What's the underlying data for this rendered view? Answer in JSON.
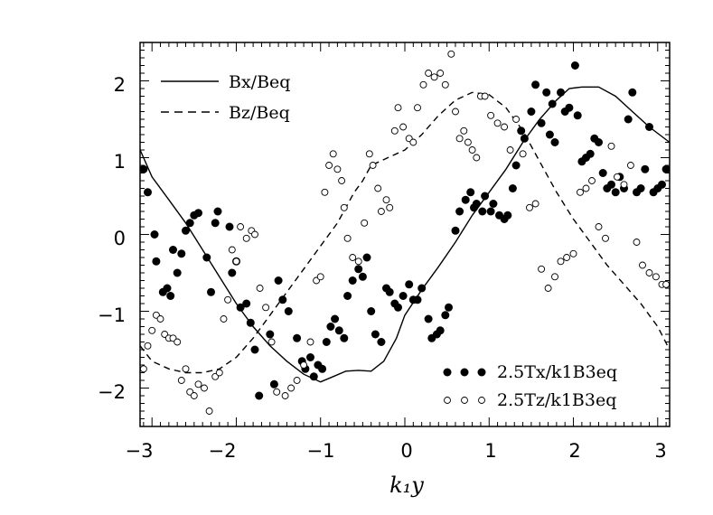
{
  "chart_data": {
    "type": "scatter",
    "title": "",
    "xlabel": "k₁y",
    "ylabel": "",
    "xlim": [
      -3.14159,
      3.14159
    ],
    "ylim": [
      -2.5,
      2.5
    ],
    "x_ticks": [
      -3,
      -2,
      -1,
      0,
      1,
      2,
      3
    ],
    "x_tick_labels": [
      "−3",
      "−2",
      "−1",
      "0",
      "1",
      "2",
      "3"
    ],
    "y_ticks": [
      -2,
      -1,
      0,
      1,
      2
    ],
    "y_tick_labels": [
      "−2",
      "−1",
      "0",
      "1",
      "2"
    ],
    "grid": false,
    "legend_top": {
      "position": "top-left",
      "entries": [
        {
          "style": "solid",
          "label": "Bx/Beq"
        },
        {
          "style": "dashed",
          "label": "Bz/Beq"
        }
      ]
    },
    "legend_bottom": {
      "position": "bottom-right",
      "entries": [
        {
          "style": "filled",
          "label": "2.5Tx/k1B3eq"
        },
        {
          "style": "open",
          "label": "2.5Tz/k1B3eq"
        }
      ]
    },
    "series": [
      {
        "key": "bx_line",
        "kind": "line",
        "dash": false,
        "x": [
          -3.14,
          -3.0,
          -2.8,
          -2.6,
          -2.4,
          -2.2,
          -2.0,
          -1.8,
          -1.6,
          -1.4,
          -1.2,
          -1.0,
          -0.85,
          -0.7,
          -0.55,
          -0.4,
          -0.25,
          -0.1,
          0.0,
          0.2,
          0.4,
          0.6,
          0.8,
          1.0,
          1.2,
          1.4,
          1.6,
          1.8,
          1.95,
          2.1,
          2.3,
          2.5,
          2.7,
          2.9,
          3.14
        ],
        "y": [
          1.1,
          0.75,
          0.45,
          0.15,
          -0.2,
          -0.55,
          -0.9,
          -1.2,
          -1.45,
          -1.65,
          -1.82,
          -1.92,
          -1.85,
          -1.78,
          -1.77,
          -1.78,
          -1.65,
          -1.35,
          -1.05,
          -0.72,
          -0.42,
          -0.1,
          0.25,
          0.55,
          0.85,
          1.2,
          1.5,
          1.75,
          1.9,
          1.92,
          1.92,
          1.8,
          1.6,
          1.4,
          1.2
        ]
      },
      {
        "key": "bz_line",
        "kind": "line",
        "dash": true,
        "x": [
          -3.14,
          -3.0,
          -2.8,
          -2.6,
          -2.4,
          -2.2,
          -2.0,
          -1.8,
          -1.6,
          -1.4,
          -1.2,
          -1.0,
          -0.8,
          -0.6,
          -0.5,
          -0.4,
          -0.3,
          -0.2,
          0.0,
          0.2,
          0.4,
          0.6,
          0.8,
          1.0,
          1.2,
          1.4,
          1.6,
          1.8,
          2.0,
          2.2,
          2.4,
          2.6,
          2.8,
          3.0,
          3.14
        ],
        "y": [
          -1.45,
          -1.65,
          -1.75,
          -1.8,
          -1.8,
          -1.75,
          -1.6,
          -1.35,
          -1.05,
          -0.75,
          -0.45,
          -0.15,
          0.15,
          0.55,
          0.7,
          0.9,
          0.95,
          1.0,
          1.1,
          1.3,
          1.55,
          1.75,
          1.85,
          1.82,
          1.65,
          1.35,
          0.95,
          0.55,
          0.2,
          -0.1,
          -0.4,
          -0.65,
          -0.9,
          -1.2,
          -1.5
        ]
      },
      {
        "key": "tx_points",
        "kind": "points",
        "filled": true,
        "x": [
          -3.1,
          -3.05,
          -2.97,
          -2.95,
          -2.87,
          -2.82,
          -2.78,
          -2.75,
          -2.7,
          -2.65,
          -2.6,
          -2.55,
          -2.5,
          -2.45,
          -2.35,
          -2.3,
          -2.25,
          -2.22,
          -2.08,
          -2.05,
          -2.0,
          -1.95,
          -1.88,
          -1.83,
          -1.78,
          -1.73,
          -1.6,
          -1.55,
          -1.5,
          -1.45,
          -1.38,
          -1.28,
          -1.22,
          -1.18,
          -1.12,
          -1.08,
          -1.03,
          -0.98,
          -0.93,
          -0.88,
          -0.83,
          -0.78,
          -0.72,
          -0.68,
          -0.62,
          -0.55,
          -0.5,
          -0.45,
          -0.4,
          -0.35,
          -0.28,
          -0.22,
          -0.18,
          -0.12,
          -0.08,
          -0.02,
          0.05,
          0.1,
          0.15,
          0.2,
          0.28,
          0.32,
          0.38,
          0.42,
          0.48,
          0.52,
          0.6,
          0.65,
          0.72,
          0.78,
          0.82,
          0.85,
          0.92,
          0.95,
          1.02,
          1.05,
          1.12,
          1.18,
          1.22,
          1.28,
          1.32,
          1.38,
          1.42,
          1.5,
          1.55,
          1.62,
          1.68,
          1.72,
          1.75,
          1.78,
          1.85,
          1.9,
          1.95,
          2.02,
          2.05,
          2.1,
          2.15,
          2.2,
          2.25,
          2.3,
          2.35,
          2.4,
          2.45,
          2.5,
          2.55,
          2.6,
          2.65,
          2.7,
          2.75,
          2.8,
          2.85,
          2.9,
          2.95,
          3.0,
          3.05,
          3.1
        ],
        "y": [
          0.85,
          0.55,
          0.0,
          -0.35,
          -0.75,
          -0.7,
          -0.8,
          -0.2,
          -0.5,
          -0.25,
          0.05,
          0.15,
          0.25,
          0.28,
          -0.3,
          -0.75,
          0.15,
          0.3,
          0.1,
          -0.5,
          -0.35,
          -0.95,
          -0.9,
          -1.15,
          -1.5,
          -2.1,
          -1.3,
          -1.95,
          -0.6,
          -0.85,
          -1.0,
          -1.35,
          -1.65,
          -1.75,
          -1.6,
          -1.85,
          -1.7,
          -1.75,
          -1.4,
          -1.2,
          -1.1,
          -1.25,
          -1.35,
          -0.8,
          -0.6,
          -0.45,
          -0.55,
          -0.3,
          -1.0,
          -1.3,
          -1.4,
          -0.7,
          -0.75,
          -0.9,
          -0.95,
          -0.8,
          -0.65,
          -0.85,
          -0.85,
          -0.7,
          -1.1,
          -1.35,
          -1.3,
          -1.25,
          -1.05,
          -0.95,
          0.05,
          0.3,
          0.45,
          0.55,
          0.35,
          0.4,
          0.3,
          0.5,
          0.3,
          0.4,
          0.25,
          0.2,
          0.25,
          0.6,
          0.9,
          1.35,
          1.25,
          1.6,
          1.95,
          1.45,
          1.85,
          1.3,
          1.7,
          1.2,
          1.85,
          1.6,
          1.65,
          2.2,
          1.55,
          0.95,
          1.0,
          1.05,
          1.25,
          1.2,
          0.8,
          0.6,
          0.65,
          0.55,
          0.75,
          0.6,
          1.5,
          1.85,
          0.55,
          0.6,
          0.85,
          1.4,
          0.55,
          0.6,
          0.65,
          0.85
        ]
      },
      {
        "key": "tz_points",
        "kind": "points",
        "filled": false,
        "x": [
          -3.1,
          -3.05,
          -3.0,
          -2.95,
          -2.9,
          -2.85,
          -2.8,
          -2.75,
          -2.7,
          -2.65,
          -2.6,
          -2.55,
          -2.5,
          -2.45,
          -2.38,
          -2.32,
          -2.25,
          -2.2,
          -2.15,
          -2.1,
          -2.05,
          -2.0,
          -1.95,
          -1.88,
          -1.82,
          -1.78,
          -1.72,
          -1.65,
          -1.58,
          -1.52,
          -1.42,
          -1.35,
          -1.28,
          -1.2,
          -1.12,
          -1.05,
          -1.0,
          -0.95,
          -0.9,
          -0.85,
          -0.8,
          -0.75,
          -0.72,
          -0.68,
          -0.62,
          -0.55,
          -0.48,
          -0.42,
          -0.38,
          -0.32,
          -0.28,
          -0.22,
          -0.18,
          -0.12,
          -0.08,
          -0.02,
          0.05,
          0.1,
          0.15,
          0.22,
          0.28,
          0.35,
          0.42,
          0.48,
          0.55,
          0.6,
          0.65,
          0.7,
          0.75,
          0.8,
          0.85,
          0.9,
          0.95,
          1.02,
          1.1,
          1.18,
          1.25,
          1.32,
          1.4,
          1.48,
          1.55,
          1.62,
          1.7,
          1.78,
          1.85,
          1.92,
          2.0,
          2.08,
          2.15,
          2.22,
          2.3,
          2.38,
          2.45,
          2.52,
          2.6,
          2.68,
          2.75,
          2.82,
          2.9,
          2.98,
          3.05,
          3.1
        ],
        "y": [
          -1.75,
          -1.45,
          -1.25,
          -1.05,
          -1.1,
          -1.3,
          -1.35,
          -1.35,
          -1.4,
          -1.9,
          -1.75,
          -2.05,
          -2.1,
          -1.95,
          -2.0,
          -2.3,
          -1.85,
          -1.8,
          -1.1,
          -0.85,
          -0.2,
          -0.35,
          0.1,
          -0.05,
          0.05,
          0.0,
          -0.7,
          -0.95,
          -1.4,
          -2.05,
          -2.1,
          -2.0,
          -1.9,
          -1.7,
          -1.4,
          -0.6,
          -0.55,
          0.55,
          0.9,
          1.05,
          0.85,
          0.7,
          0.35,
          -0.05,
          -0.3,
          -0.35,
          0.15,
          1.05,
          0.9,
          0.6,
          0.3,
          0.45,
          0.35,
          1.35,
          1.65,
          1.4,
          1.25,
          1.2,
          1.65,
          1.95,
          2.1,
          2.05,
          2.1,
          1.95,
          2.35,
          1.6,
          1.25,
          1.35,
          1.2,
          1.1,
          1.0,
          1.8,
          1.8,
          1.55,
          1.45,
          1.4,
          1.1,
          1.5,
          1.05,
          0.35,
          0.4,
          -0.45,
          -0.7,
          -0.55,
          -0.35,
          -0.3,
          -0.25,
          0.55,
          0.6,
          0.7,
          0.1,
          -0.05,
          1.15,
          0.75,
          0.65,
          0.9,
          -0.1,
          -0.4,
          -0.5,
          -0.55,
          -0.65,
          -0.65
        ]
      }
    ]
  }
}
